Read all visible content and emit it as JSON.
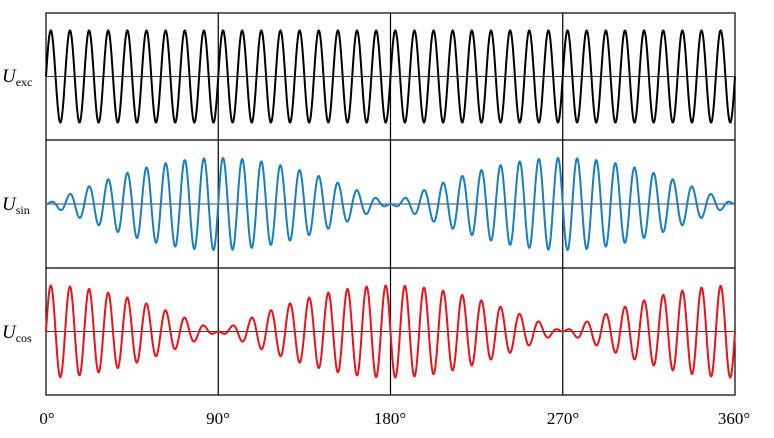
{
  "chart_data": {
    "type": "line",
    "title": "",
    "x_range_deg": [
      0,
      360
    ],
    "x_ticks": [
      "0°",
      "90°",
      "180°",
      "270°",
      "360°"
    ],
    "x_tick_values": [
      0,
      90,
      180,
      270,
      360
    ],
    "carrier_cycles": 36,
    "panels": [
      {
        "label_main": "U",
        "label_sub": "exc",
        "color": "#000000",
        "envelope": "constant",
        "amplitude": 1.0
      },
      {
        "label_main": "U",
        "label_sub": "sin",
        "color": "#1a7dc0",
        "envelope": "sin(theta)",
        "amplitude": 1.0
      },
      {
        "label_main": "U",
        "label_sub": "cos",
        "color": "#e8141b",
        "envelope": "cos(theta)",
        "amplitude": 1.0
      }
    ],
    "grid": true,
    "baseline": true
  }
}
